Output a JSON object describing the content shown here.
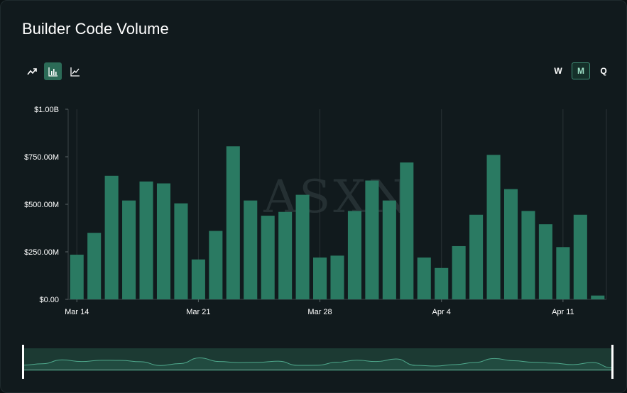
{
  "title": "Builder Code Volume",
  "toolbar": {
    "chart_types": [
      {
        "icon": "trend-line-icon",
        "active": false
      },
      {
        "icon": "bar-chart-icon",
        "active": true
      },
      {
        "icon": "line-chart-icon",
        "active": false
      }
    ],
    "periods": [
      "W",
      "M",
      "Q"
    ],
    "active_period": "M"
  },
  "watermark": "ASXN",
  "colors": {
    "bar": "#2a7a62",
    "accent": "#3f8f77",
    "background": "#111a1d",
    "text": "#ffffff",
    "grid": "#2a3336"
  },
  "chart_data": {
    "type": "bar",
    "title": "Builder Code Volume",
    "xlabel": "",
    "ylabel": "",
    "ylim": [
      0,
      1000000000
    ],
    "y_ticks": [
      {
        "value": 0,
        "label": "$0.00"
      },
      {
        "value": 250000000,
        "label": "$250.00M"
      },
      {
        "value": 500000000,
        "label": "$500.00M"
      },
      {
        "value": 750000000,
        "label": "$750.00M"
      },
      {
        "value": 1000000000,
        "label": "$1.00B"
      }
    ],
    "x_ticks": [
      {
        "index": 0,
        "label": "Mar 14"
      },
      {
        "index": 7,
        "label": "Mar 21"
      },
      {
        "index": 14,
        "label": "Mar 28"
      },
      {
        "index": 21,
        "label": "Apr 4"
      },
      {
        "index": 28,
        "label": "Apr 11"
      }
    ],
    "categories": [
      "Mar 14",
      "Mar 15",
      "Mar 16",
      "Mar 17",
      "Mar 18",
      "Mar 19",
      "Mar 20",
      "Mar 21",
      "Mar 22",
      "Mar 23",
      "Mar 24",
      "Mar 25",
      "Mar 26",
      "Mar 27",
      "Mar 28",
      "Mar 29",
      "Mar 30",
      "Mar 31",
      "Apr 1",
      "Apr 2",
      "Apr 3",
      "Apr 4",
      "Apr 5",
      "Apr 6",
      "Apr 7",
      "Apr 8",
      "Apr 9",
      "Apr 10",
      "Apr 11",
      "Apr 12",
      "Apr 13"
    ],
    "values": [
      235000000,
      350000000,
      650000000,
      520000000,
      620000000,
      610000000,
      505000000,
      210000000,
      360000000,
      805000000,
      520000000,
      440000000,
      460000000,
      550000000,
      220000000,
      230000000,
      465000000,
      625000000,
      520000000,
      720000000,
      220000000,
      165000000,
      280000000,
      445000000,
      760000000,
      580000000,
      465000000,
      395000000,
      275000000,
      445000000,
      20000000
    ],
    "grid": true,
    "legend": "none"
  }
}
